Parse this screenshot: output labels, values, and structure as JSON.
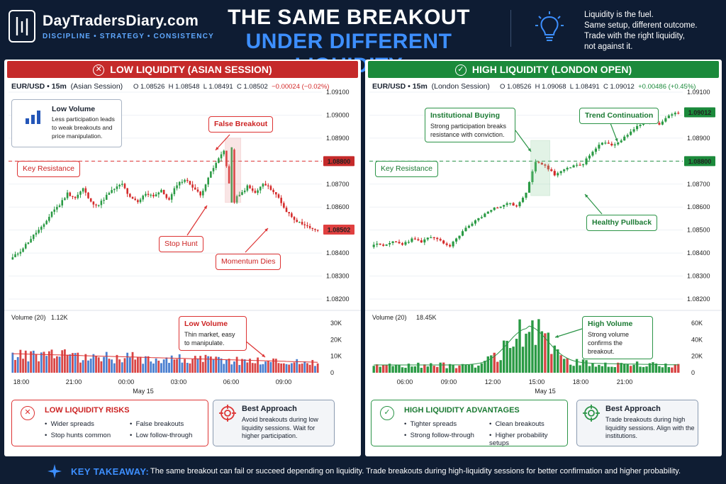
{
  "header": {
    "brand": "DayTradersDiary.com",
    "tagline": "DISCIPLINE • STRATEGY • CONSISTENCY",
    "title_line1": "THE SAME BREAKOUT",
    "title_line2": "UNDER DIFFERENT LIQUIDITY",
    "quote_line1": "Liquidity is the fuel.",
    "quote_line2": "Same setup, different outcome.",
    "quote_line3": "Trade with the right liquidity,",
    "quote_line4": "not against it."
  },
  "colors": {
    "bull": "#2a9a44",
    "bear": "#d42a2a",
    "bg": "#0f1d33",
    "accent": "#3d8fff",
    "vol_blue": "#4a7fd0"
  },
  "left": {
    "title": "LOW LIQUIDITY (ASIAN SESSION)",
    "symbol": "EUR/USD • 15m",
    "session": "(Asian Session)",
    "o": "O 1.08526",
    "h": "H 1.08548",
    "l": "L 1.08491",
    "c": "C 1.08502",
    "chg": "−0.00024 (−0.02%)",
    "low_volume_title": "Low Volume",
    "low_volume_body": "Less participation leads to weak breakouts and price manipulation.",
    "false_breakout": "False Breakout",
    "key_resistance": "Key Resistance",
    "stop_hunt": "Stop Hunt",
    "momentum_dies": "Momentum Dies",
    "price_tag_res": "1.08800",
    "price_tag_last": "1.08502",
    "y_ticks": [
      "1.09100",
      "1.09000",
      "1.08900",
      "1.08800",
      "1.08700",
      "1.08600",
      "1.08500",
      "1.08400",
      "1.08300",
      "1.08200"
    ],
    "volume_label": "Volume (20)",
    "volume_value": "1.12K",
    "vol_ticks": [
      "30K",
      "20K",
      "10K",
      "0"
    ],
    "lowvol_callout_title": "Low Volume",
    "lowvol_callout_body": "Thin market, easy to manipulate.",
    "x_ticks": [
      "18:00",
      "21:00",
      "00:00",
      "03:00",
      "06:00",
      "09:00"
    ],
    "date": "May 15",
    "risks_title": "LOW LIQUIDITY RISKS",
    "risks": [
      "Wider spreads",
      "Stop hunts common",
      "False breakouts",
      "Low follow-through"
    ],
    "approach_title": "Best Approach",
    "approach_body": "Avoid breakouts during low liquidity sessions. Wait for higher participation."
  },
  "right": {
    "title": "HIGH LIQUIDITY (LONDON OPEN)",
    "symbol": "EUR/USD • 15m",
    "session": "(London Session)",
    "o": "O 1.08526",
    "h": "H 1.09068",
    "l": "L 1.08491",
    "c": "C 1.09012",
    "chg": "+0.00486 (+0.45%)",
    "institutional_title": "Institutional Buying",
    "institutional_body": "Strong participation breaks resistance with conviction.",
    "trend_continuation": "Trend Continuation",
    "key_resistance": "Key Resistance",
    "healthy_pullback": "Healthy Pullback",
    "price_tag_last": "1.09012",
    "price_tag_res": "1.08800",
    "y_ticks": [
      "1.09100",
      "1.09000",
      "1.08900",
      "1.08800",
      "1.08700",
      "1.08600",
      "1.08500",
      "1.08400",
      "1.08300",
      "1.08200"
    ],
    "volume_label": "Volume (20)",
    "volume_value": "18.45K",
    "vol_ticks": [
      "60K",
      "40K",
      "20K",
      "0"
    ],
    "highvol_callout_title": "High Volume",
    "highvol_callout_body": "Strong volume confirms the breakout.",
    "x_ticks": [
      "06:00",
      "09:00",
      "12:00",
      "15:00",
      "18:00",
      "21:00"
    ],
    "date": "May 15",
    "adv_title": "HIGH LIQUIDITY ADVANTAGES",
    "advantages": [
      "Tighter spreads",
      "Strong follow-through",
      "Clean breakouts",
      "Higher probability setups"
    ],
    "approach_title": "Best Approach",
    "approach_body": "Trade breakouts during high liquidity sessions. Align with the institutions."
  },
  "takeaway": {
    "label": "KEY TAKEAWAY:",
    "text": "The same breakout can fail or succeed depending on liquidity. Trade breakouts during high-liquidity sessions for better confirmation and higher probability."
  },
  "chart_data": [
    {
      "type": "candlestick",
      "title": "LOW LIQUIDITY (ASIAN SESSION)",
      "ylim": [
        1.082,
        1.091
      ],
      "resistance": 1.088,
      "close_path": [
        1.0838,
        1.0841,
        1.0845,
        1.0849,
        1.0852,
        1.0858,
        1.0861,
        1.0866,
        1.0864,
        1.0868,
        1.0862,
        1.0861,
        1.0865,
        1.0868,
        1.087,
        1.0864,
        1.0862,
        1.0866,
        1.0865,
        1.0867,
        1.0863,
        1.087,
        1.0872,
        1.0869,
        1.0865,
        1.0873,
        1.0879,
        1.0885,
        1.0863,
        1.0865,
        1.0869,
        1.0866,
        1.087,
        1.0868,
        1.0864,
        1.0858,
        1.0855,
        1.0852,
        1.0851,
        1.085
      ],
      "volume_range": [
        0,
        30000
      ]
    },
    {
      "type": "candlestick",
      "title": "HIGH LIQUIDITY (LONDON OPEN)",
      "ylim": [
        1.082,
        1.091
      ],
      "resistance": 1.088,
      "close_path": [
        1.0844,
        1.0843,
        1.0845,
        1.0844,
        1.0846,
        1.0845,
        1.0847,
        1.0845,
        1.0843,
        1.0848,
        1.0852,
        1.0855,
        1.0858,
        1.086,
        1.0862,
        1.086,
        1.0866,
        1.088,
        1.0878,
        1.0874,
        1.0876,
        1.0878,
        1.0879,
        1.0884,
        1.0888,
        1.0887,
        1.0889,
        1.0893,
        1.0896,
        1.0898,
        1.0896,
        1.09,
        1.0901
      ],
      "volume_range": [
        0,
        60000
      ]
    }
  ]
}
